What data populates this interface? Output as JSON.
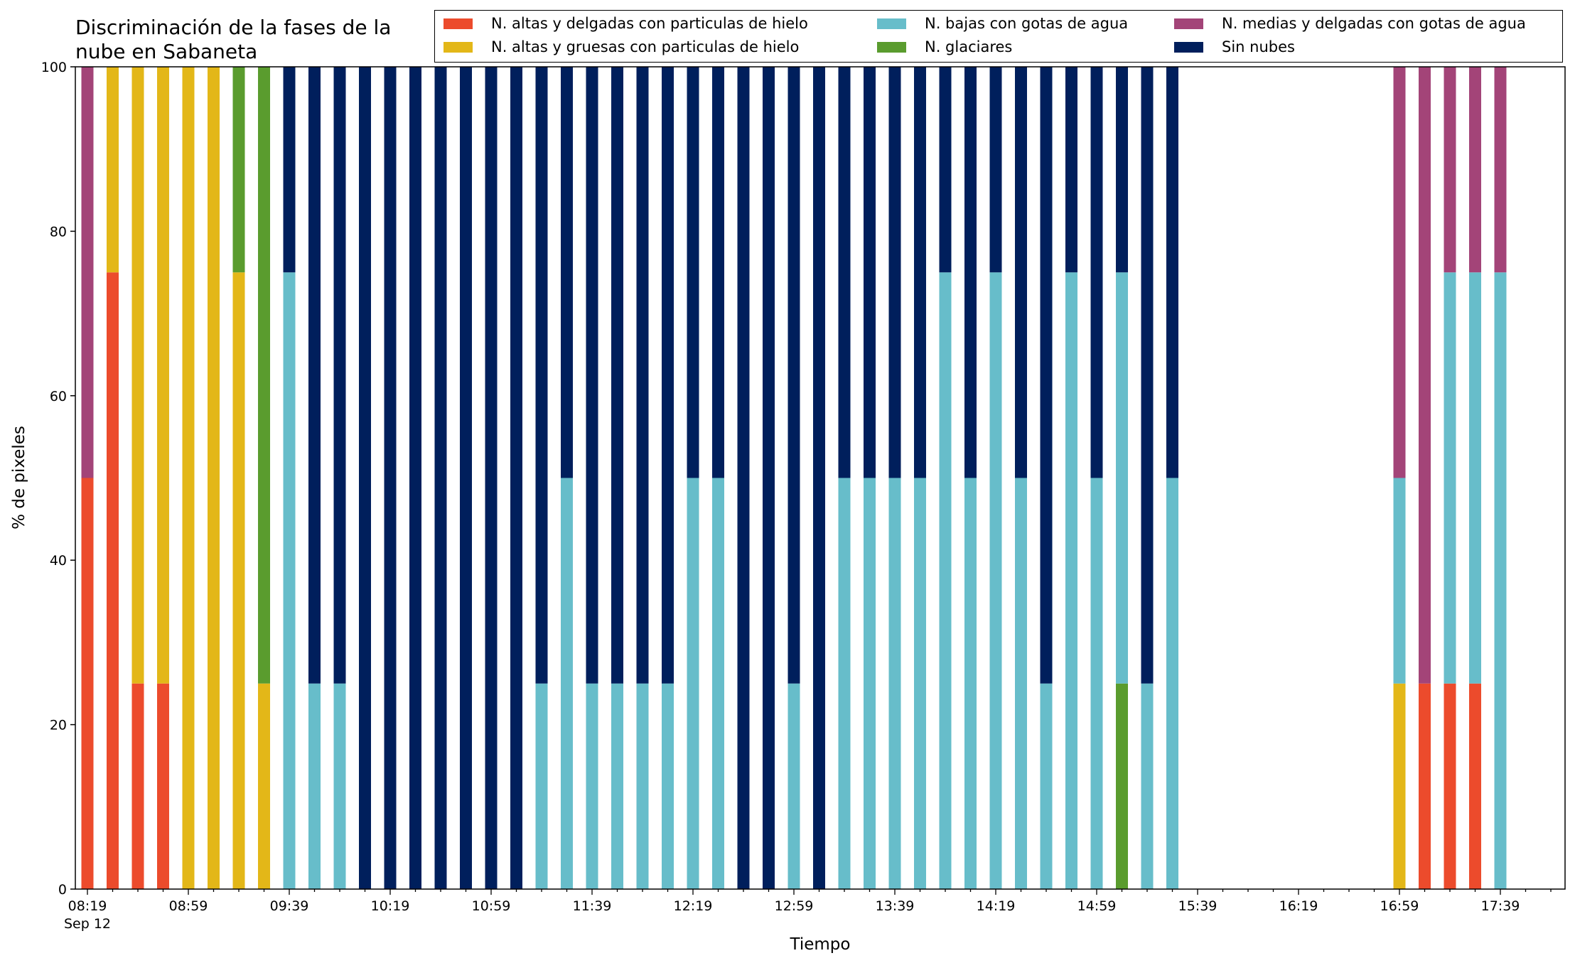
{
  "colors": {
    "red": "#ec4b2c",
    "yellow": "#e3b718",
    "cyan": "#67bdca",
    "green": "#5a9c2e",
    "purple": "#a34478",
    "navy": "#001f5c"
  },
  "chart_data": {
    "type": "bar",
    "stacked": true,
    "title": "Discriminación de la fases de la\nnube en Sabaneta",
    "title_lines": [
      "Discriminación de la fases de la",
      "nube en Sabaneta"
    ],
    "xlabel": "Tiempo",
    "ylabel": "% de pixeles",
    "ylim": [
      0,
      100
    ],
    "yticks": [
      0,
      20,
      40,
      60,
      80,
      100
    ],
    "x_start": "08:19",
    "x_step_minutes": 10,
    "xtick_labels": [
      "08:19",
      "08:59",
      "09:39",
      "10:19",
      "10:59",
      "11:39",
      "12:19",
      "12:59",
      "13:39",
      "14:19",
      "14:59",
      "15:39",
      "16:19",
      "16:59",
      "17:39"
    ],
    "xtick_sublabel": "Sep 12",
    "legend_location": "top-right",
    "grid": false,
    "categories": [
      "08:19",
      "08:29",
      "08:39",
      "08:49",
      "08:59",
      "09:09",
      "09:19",
      "09:29",
      "09:39",
      "09:49",
      "09:59",
      "10:09",
      "10:19",
      "10:29",
      "10:39",
      "10:49",
      "10:59",
      "11:09",
      "11:19",
      "11:29",
      "11:39",
      "11:49",
      "11:59",
      "12:09",
      "12:19",
      "12:29",
      "12:39",
      "12:49",
      "12:59",
      "13:09",
      "13:19",
      "13:29",
      "13:39",
      "13:49",
      "13:59",
      "14:09",
      "14:19",
      "14:29",
      "14:39",
      "14:49",
      "14:59",
      "15:09",
      "15:19",
      "15:29",
      "15:39",
      "15:49",
      "15:59",
      "16:09",
      "16:19",
      "16:29",
      "16:39",
      "16:49",
      "16:59",
      "17:09",
      "17:19",
      "17:29",
      "17:39",
      "17:49",
      "17:59"
    ],
    "series": [
      {
        "name": "N. altas y delgadas con particulas de hielo",
        "color_key": "red",
        "values": [
          50,
          75,
          25,
          25,
          0,
          0,
          0,
          0,
          0,
          0,
          0,
          0,
          0,
          0,
          0,
          0,
          0,
          0,
          0,
          0,
          0,
          0,
          0,
          0,
          0,
          0,
          0,
          0,
          0,
          0,
          0,
          0,
          0,
          0,
          0,
          0,
          0,
          0,
          0,
          0,
          0,
          0,
          0,
          0,
          0,
          0,
          0,
          0,
          0,
          0,
          0,
          0,
          0,
          25,
          25,
          25,
          0,
          0,
          0
        ]
      },
      {
        "name": "N. altas y gruesas con particulas de hielo",
        "color_key": "yellow",
        "values": [
          0,
          25,
          75,
          75,
          100,
          100,
          75,
          25,
          0,
          0,
          0,
          0,
          0,
          0,
          0,
          0,
          0,
          0,
          0,
          0,
          0,
          0,
          0,
          0,
          0,
          0,
          0,
          0,
          0,
          0,
          0,
          0,
          0,
          0,
          0,
          0,
          0,
          0,
          0,
          0,
          0,
          0,
          0,
          0,
          0,
          0,
          0,
          0,
          0,
          0,
          0,
          0,
          25,
          0,
          0,
          0,
          0,
          0,
          0
        ]
      },
      {
        "name": "N. glaciares",
        "color_key": "green",
        "values": [
          0,
          0,
          0,
          0,
          0,
          0,
          25,
          75,
          0,
          0,
          0,
          0,
          0,
          0,
          0,
          0,
          0,
          0,
          0,
          0,
          0,
          0,
          0,
          0,
          0,
          0,
          0,
          0,
          0,
          0,
          0,
          0,
          0,
          0,
          0,
          0,
          0,
          0,
          0,
          0,
          0,
          25,
          0,
          0,
          0,
          0,
          0,
          0,
          0,
          0,
          0,
          0,
          0,
          0,
          0,
          0,
          0,
          0,
          0
        ]
      },
      {
        "name": "N. bajas con gotas de agua",
        "color_key": "cyan",
        "values": [
          0,
          0,
          0,
          0,
          0,
          0,
          0,
          0,
          75,
          25,
          25,
          0,
          0,
          0,
          0,
          0,
          0,
          0,
          25,
          50,
          25,
          25,
          25,
          25,
          50,
          50,
          0,
          0,
          25,
          0,
          50,
          50,
          50,
          50,
          75,
          50,
          75,
          50,
          25,
          75,
          50,
          50,
          25,
          50,
          0,
          0,
          0,
          0,
          0,
          0,
          0,
          0,
          25,
          0,
          50,
          50,
          75,
          0,
          0
        ]
      },
      {
        "name": "N. medias y delgadas con gotas de agua",
        "color_key": "purple",
        "values": [
          50,
          0,
          0,
          0,
          0,
          0,
          0,
          0,
          0,
          0,
          0,
          0,
          0,
          0,
          0,
          0,
          0,
          0,
          0,
          0,
          0,
          0,
          0,
          0,
          0,
          0,
          0,
          0,
          0,
          0,
          0,
          0,
          0,
          0,
          0,
          0,
          0,
          0,
          0,
          0,
          0,
          0,
          0,
          0,
          0,
          0,
          0,
          0,
          0,
          0,
          0,
          0,
          50,
          75,
          25,
          25,
          25,
          0,
          0
        ]
      },
      {
        "name": "Sin nubes",
        "color_key": "navy",
        "values": [
          0,
          0,
          0,
          0,
          0,
          0,
          0,
          0,
          25,
          75,
          75,
          100,
          100,
          100,
          100,
          100,
          100,
          100,
          75,
          50,
          75,
          75,
          75,
          75,
          50,
          50,
          100,
          100,
          75,
          100,
          50,
          50,
          50,
          50,
          25,
          50,
          25,
          50,
          75,
          25,
          50,
          25,
          75,
          50,
          0,
          0,
          0,
          0,
          0,
          0,
          0,
          0,
          0,
          0,
          0,
          0,
          0,
          0,
          0
        ]
      }
    ],
    "legend": [
      {
        "label": "N. altas y delgadas con particulas de hielo",
        "color_key": "red"
      },
      {
        "label": "N. altas y gruesas con particulas de hielo",
        "color_key": "yellow"
      },
      {
        "label": "N. bajas con gotas de agua",
        "color_key": "cyan"
      },
      {
        "label": "N. glaciares",
        "color_key": "green"
      },
      {
        "label": "N. medias y delgadas con gotas de agua",
        "color_key": "purple"
      },
      {
        "label": "Sin nubes",
        "color_key": "navy"
      }
    ]
  }
}
